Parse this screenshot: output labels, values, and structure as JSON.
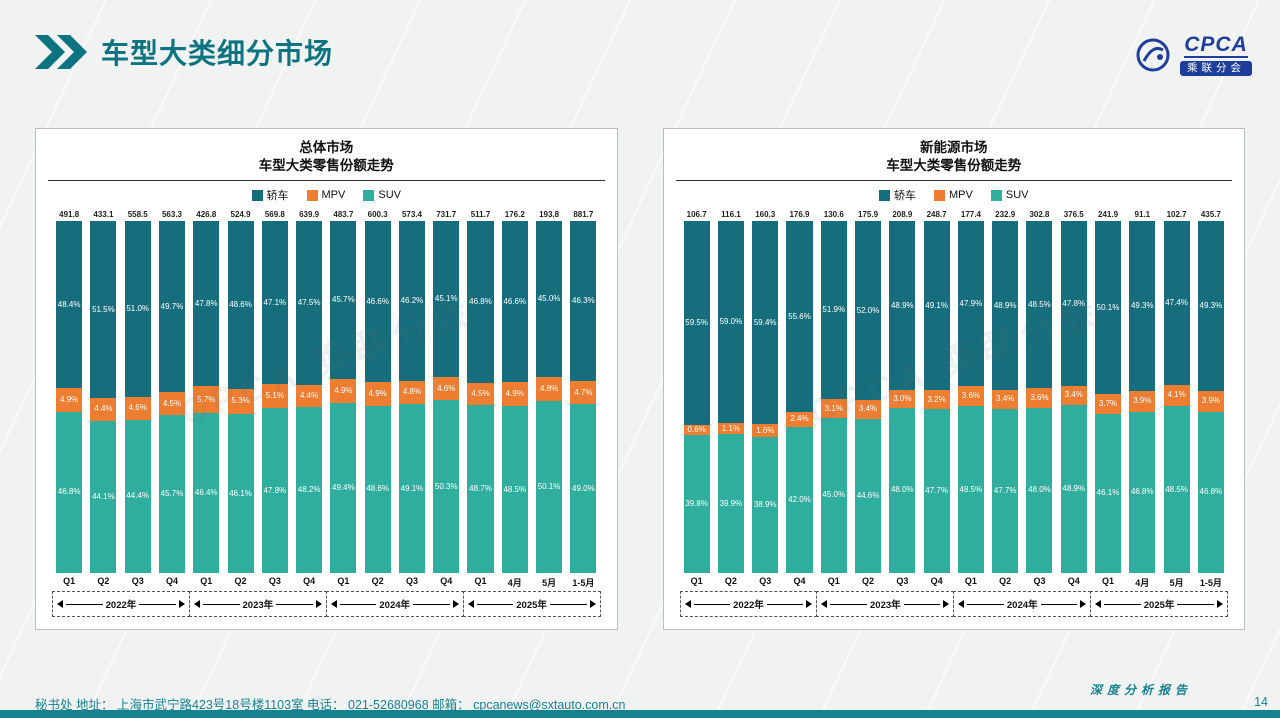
{
  "header": {
    "title": "车型大类细分市场",
    "logo": {
      "text": "CPCA",
      "subtext": "乘联分会"
    }
  },
  "watermark": "CPCA 乘联分会",
  "footer": {
    "left": "秘书处   地址： 上海市武宁路423号18号楼1103室  电话： 021-52680968   邮箱： cpcanews@sxtauto.com.cn",
    "report_label": "深度分析报告",
    "page_number": "14"
  },
  "chart_data": [
    {
      "type": "bar",
      "stacked": true,
      "title": "总体市场",
      "subtitle": "车型大类零售份额走势",
      "legend_position": "top",
      "categories": [
        "Q1",
        "Q2",
        "Q3",
        "Q4",
        "Q1",
        "Q2",
        "Q3",
        "Q4",
        "Q1",
        "Q2",
        "Q3",
        "Q4",
        "Q1",
        "4月",
        "5月",
        "1-5月"
      ],
      "year_groups": [
        {
          "label": "2022年",
          "span": 4
        },
        {
          "label": "2023年",
          "span": 4
        },
        {
          "label": "2024年",
          "span": 4
        },
        {
          "label": "2025年",
          "span": 4
        }
      ],
      "totals": [
        "491.8",
        "433.1",
        "558.5",
        "563.3",
        "426.8",
        "524.9",
        "569.8",
        "639.9",
        "483.7",
        "600.3",
        "573.4",
        "731.7",
        "511.7",
        "176.2",
        "193.8",
        "881.7"
      ],
      "series": [
        {
          "name": "轿车",
          "key": "sedan",
          "color": "#166e7c",
          "values": [
            48.4,
            51.5,
            51.0,
            49.7,
            47.8,
            48.6,
            47.1,
            47.5,
            45.7,
            46.6,
            46.2,
            45.1,
            46.8,
            46.6,
            45.0,
            46.3
          ]
        },
        {
          "name": "MPV",
          "key": "mpv",
          "color": "#ed7d31",
          "values": [
            4.9,
            4.4,
            4.6,
            4.5,
            5.7,
            5.3,
            5.1,
            4.4,
            4.9,
            4.9,
            4.8,
            4.6,
            4.5,
            4.9,
            4.8,
            4.7
          ]
        },
        {
          "name": "SUV",
          "key": "suv",
          "color": "#2fae9e",
          "values": [
            46.8,
            44.1,
            44.4,
            45.7,
            46.4,
            46.1,
            47.8,
            48.2,
            49.4,
            48.6,
            49.1,
            50.3,
            48.7,
            48.5,
            50.1,
            49.0
          ]
        }
      ]
    },
    {
      "type": "bar",
      "stacked": true,
      "title": "新能源市场",
      "subtitle": "车型大类零售份额走势",
      "legend_position": "top",
      "categories": [
        "Q1",
        "Q2",
        "Q3",
        "Q4",
        "Q1",
        "Q2",
        "Q3",
        "Q4",
        "Q1",
        "Q2",
        "Q3",
        "Q4",
        "Q1",
        "4月",
        "5月",
        "1-5月"
      ],
      "year_groups": [
        {
          "label": "2022年",
          "span": 4
        },
        {
          "label": "2023年",
          "span": 4
        },
        {
          "label": "2024年",
          "span": 4
        },
        {
          "label": "2025年",
          "span": 4
        }
      ],
      "totals": [
        "106.7",
        "116.1",
        "160.3",
        "176.9",
        "130.6",
        "175.9",
        "208.9",
        "248.7",
        "177.4",
        "232.9",
        "302.8",
        "376.5",
        "241.9",
        "91.1",
        "102.7",
        "435.7"
      ],
      "series": [
        {
          "name": "轿车",
          "key": "sedan",
          "color": "#166e7c",
          "values": [
            59.5,
            59.0,
            59.4,
            55.6,
            51.9,
            52.0,
            48.9,
            49.1,
            47.9,
            48.9,
            48.5,
            47.8,
            50.1,
            49.3,
            47.4,
            49.3
          ]
        },
        {
          "name": "MPV",
          "key": "mpv",
          "color": "#ed7d31",
          "values": [
            0.6,
            1.1,
            1.6,
            2.4,
            3.1,
            3.4,
            3.0,
            3.2,
            3.6,
            3.4,
            3.6,
            3.4,
            3.7,
            3.9,
            4.1,
            3.9
          ]
        },
        {
          "name": "SUV",
          "key": "suv",
          "color": "#2fae9e",
          "values": [
            39.8,
            39.9,
            38.9,
            42.0,
            45.0,
            44.6,
            48.0,
            47.7,
            48.5,
            47.7,
            48.0,
            48.9,
            46.1,
            46.8,
            48.5,
            46.8
          ]
        }
      ]
    }
  ]
}
